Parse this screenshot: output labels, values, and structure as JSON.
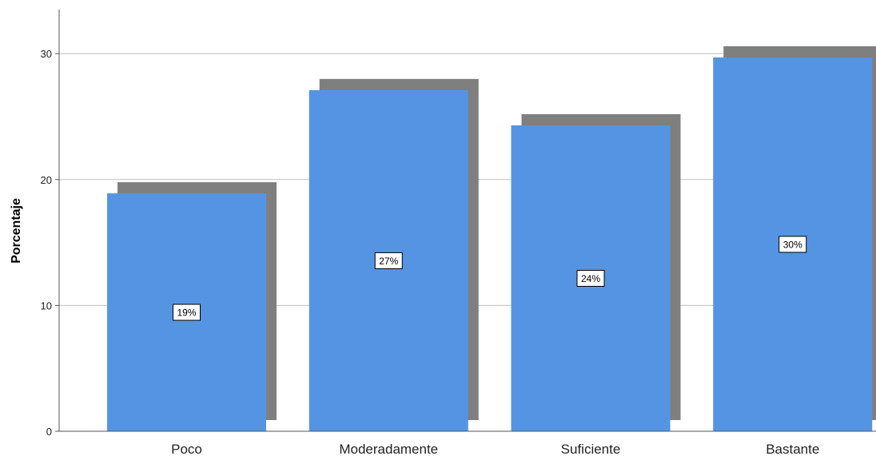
{
  "chart_data": {
    "type": "bar",
    "title": "",
    "xlabel": "",
    "ylabel": "Porcentaje",
    "categories": [
      "Poco",
      "Moderadamente",
      "Suficiente",
      "Bastante"
    ],
    "values": [
      18.9,
      27.1,
      24.3,
      29.7
    ],
    "data_labels": [
      "19%",
      "27%",
      "24%",
      "30%"
    ],
    "ylim": [
      0,
      33.5
    ],
    "yticks": [
      0,
      10,
      20,
      30
    ],
    "ytick_labels": [
      "0",
      "10",
      "20",
      "30"
    ],
    "grid": true,
    "legend": "none",
    "style": "3d-shadow",
    "colors": {
      "bar": "#5494e3",
      "shadow": "#7f7f7f",
      "grid": "#bfbfbf",
      "axis": "#555555"
    }
  }
}
